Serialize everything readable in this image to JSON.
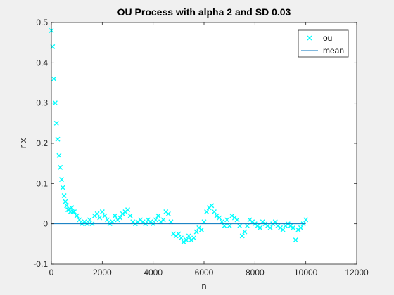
{
  "chart_data": {
    "type": "scatter",
    "title": "OU Process with alpha 2 and SD 0.03",
    "xlabel": "n",
    "ylabel": "r x",
    "xlim": [
      0,
      12000
    ],
    "ylim": [
      -0.1,
      0.5
    ],
    "xticks": [
      "0",
      "2000",
      "4000",
      "6000",
      "8000",
      "10000",
      "12000"
    ],
    "yticks": [
      "-0.1",
      "0",
      "0.1",
      "0.2",
      "0.3",
      "0.4",
      "0.5"
    ],
    "grid": false,
    "legend_position": "top-right",
    "series": [
      {
        "name": "ou",
        "marker": "x",
        "color": "#00ffff",
        "x": [
          0,
          50,
          100,
          150,
          200,
          250,
          300,
          350,
          400,
          450,
          500,
          550,
          600,
          650,
          700,
          750,
          800,
          850,
          900,
          1000,
          1100,
          1200,
          1300,
          1400,
          1500,
          1600,
          1700,
          1800,
          1900,
          2000,
          2100,
          2200,
          2300,
          2400,
          2500,
          2600,
          2700,
          2800,
          2900,
          3000,
          3100,
          3200,
          3300,
          3400,
          3500,
          3600,
          3700,
          3800,
          3900,
          4000,
          4100,
          4200,
          4300,
          4400,
          4500,
          4600,
          4700,
          4800,
          4900,
          5000,
          5100,
          5200,
          5300,
          5400,
          5500,
          5600,
          5700,
          5800,
          5900,
          6000,
          6100,
          6200,
          6300,
          6400,
          6500,
          6600,
          6700,
          6800,
          6900,
          7000,
          7100,
          7200,
          7300,
          7400,
          7500,
          7600,
          7700,
          7800,
          7900,
          8000,
          8100,
          8200,
          8300,
          8400,
          8500,
          8600,
          8700,
          8800,
          8900,
          9000,
          9100,
          9200,
          9300,
          9400,
          9500,
          9600,
          9700,
          9800,
          9900,
          10000
        ],
        "y": [
          0.48,
          0.44,
          0.36,
          0.3,
          0.25,
          0.21,
          0.17,
          0.14,
          0.11,
          0.09,
          0.07,
          0.055,
          0.045,
          0.035,
          0.035,
          0.03,
          0.04,
          0.03,
          0.03,
          0.02,
          0.01,
          0.0,
          0.005,
          0.0,
          0.01,
          0.0,
          0.02,
          0.025,
          0.015,
          0.03,
          0.02,
          0.01,
          0.0,
          0.005,
          0.02,
          0.01,
          0.015,
          0.025,
          0.03,
          0.035,
          0.02,
          0.005,
          0.0,
          0.005,
          0.01,
          0.005,
          0.0,
          0.01,
          0.005,
          0.0,
          0.01,
          0.02,
          0.005,
          0.01,
          0.03,
          0.025,
          0.005,
          -0.025,
          -0.03,
          -0.025,
          -0.035,
          -0.045,
          -0.04,
          -0.03,
          -0.04,
          -0.035,
          -0.02,
          -0.01,
          -0.015,
          0.005,
          0.03,
          0.04,
          0.045,
          0.03,
          0.02,
          0.015,
          0.005,
          -0.005,
          0.01,
          -0.005,
          0.02,
          0.015,
          0.01,
          -0.005,
          -0.03,
          -0.02,
          -0.005,
          0.01,
          0.005,
          0.0,
          -0.005,
          -0.01,
          0.005,
          0.0,
          -0.005,
          -0.01,
          0.0,
          0.005,
          -0.005,
          -0.01,
          -0.015,
          -0.005,
          0.0,
          -0.005,
          -0.01,
          -0.04,
          -0.015,
          -0.01,
          0.0,
          0.01
        ]
      },
      {
        "name": "mean",
        "color": "#0072bd",
        "x": [
          0,
          10000
        ],
        "y": [
          0,
          0
        ]
      }
    ]
  }
}
